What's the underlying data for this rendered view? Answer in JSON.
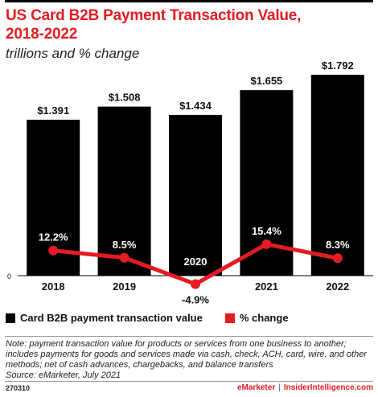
{
  "header": {
    "title": "US Card B2B Payment Transaction Value, 2018-2022",
    "subtitle": "trillions and % change"
  },
  "chart_data": {
    "type": "bar",
    "categories": [
      "2018",
      "2019",
      "2020",
      "2021",
      "2022"
    ],
    "series": [
      {
        "name": "Card B2B payment transaction value",
        "type": "bar",
        "values": [
          1.391,
          1.508,
          1.434,
          1.655,
          1.792
        ],
        "labels": [
          "$1.391",
          "$1.508",
          "$1.434",
          "$1.655",
          "$1.792"
        ],
        "color": "#000000"
      },
      {
        "name": "% change",
        "type": "line",
        "values": [
          12.2,
          8.5,
          -4.9,
          15.4,
          8.3
        ],
        "labels": [
          "12.2%",
          "8.5%",
          "-4.9%",
          "15.4%",
          "8.3%"
        ],
        "color": "#e31b23"
      }
    ],
    "y_axis_zero_label": "0",
    "title": "US Card B2B Payment Transaction Value, 2018-2022",
    "subtitle": "trillions and % change"
  },
  "legend": {
    "bar_label": "Card B2B payment transaction value",
    "line_label": "% change"
  },
  "note": {
    "line1": "Note: payment transaction value for products or services from one business to another;",
    "line2": "includes payments for goods and services made via cash, check, ACH, card, wire, and other",
    "line3": "methods; net of cash advances, chargebacks, and balance transfers",
    "source": "Source: eMarketer, July 2021"
  },
  "footer": {
    "id": "270310",
    "brand_left": "eMarketer",
    "brand_sep": "|",
    "brand_right": "InsiderIntelligence.com"
  }
}
